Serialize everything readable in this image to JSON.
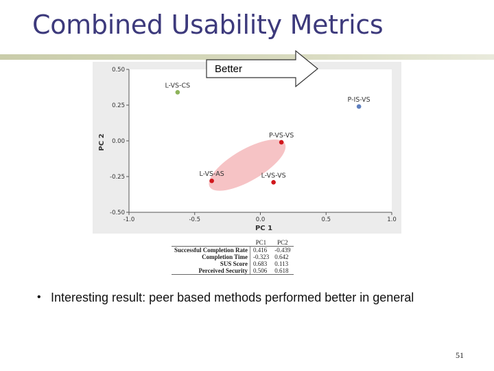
{
  "slide": {
    "title": "Combined Usability Metrics",
    "arrow_label": "Better",
    "bullet": "Interesting result: peer based methods performed better in general",
    "page_number": "51"
  },
  "chart_data": {
    "type": "scatter",
    "xlabel": "PC 1",
    "ylabel": "PC 2",
    "xlim": [
      -1.0,
      1.0
    ],
    "ylim": [
      -0.5,
      0.5
    ],
    "x_ticks": [
      "-1.0",
      "-0.5",
      "0.0",
      "0.5",
      "1.0"
    ],
    "y_ticks": [
      "0.50",
      "0.25",
      "0.00",
      "-0.25",
      "-0.50"
    ],
    "x_tick_values": [
      -1.0,
      -0.5,
      0.0,
      0.5,
      1.0
    ],
    "y_tick_values": [
      0.5,
      0.25,
      0.0,
      -0.25,
      -0.5
    ],
    "grid": false,
    "points": [
      {
        "label": "L-VS-CS",
        "x": -0.63,
        "y": 0.34,
        "color": "#8db35a"
      },
      {
        "label": "P-IS-VS",
        "x": 0.75,
        "y": 0.24,
        "color": "#5e7fbf"
      },
      {
        "label": "P-VS-VS",
        "x": 0.16,
        "y": -0.01,
        "color": "#d0171c"
      },
      {
        "label": "L-VS-AS",
        "x": -0.37,
        "y": -0.28,
        "color": "#d0171c"
      },
      {
        "label": "L-VS-VS",
        "x": 0.1,
        "y": -0.29,
        "color": "#d0171c"
      }
    ],
    "cluster_ellipse": {
      "cx": -0.1,
      "cy": -0.17,
      "rx": 0.33,
      "ry": 0.11,
      "angle_deg": 30,
      "color": "#f4b8bb"
    }
  },
  "loadings_table": {
    "headers": [
      "",
      "PC1",
      "PC2"
    ],
    "rows": [
      {
        "label": "Successful Completion Rate",
        "pc1": "0.416",
        "pc2": "-0.439"
      },
      {
        "label": "Completion Time",
        "pc1": "-0.323",
        "pc2": "0.642"
      },
      {
        "label": "SUS Score",
        "pc1": "0.683",
        "pc2": "0.113"
      },
      {
        "label": "Perceived Security",
        "pc1": "0.506",
        "pc2": "0.618"
      }
    ]
  }
}
